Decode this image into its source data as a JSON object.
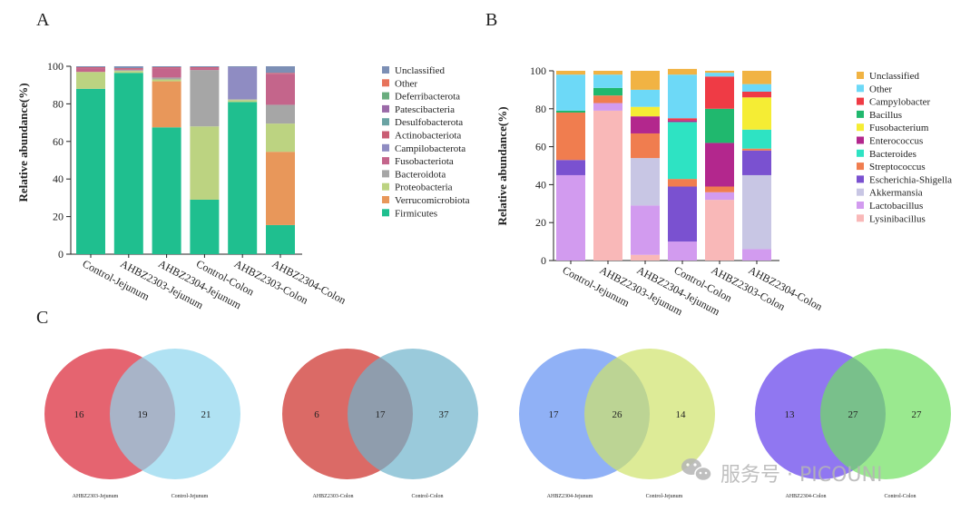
{
  "chart_data": [
    {
      "type": "bar",
      "stacked": true,
      "panel_label": "A",
      "ylabel": "Relative abundance(%)",
      "ylim": [
        0,
        100
      ],
      "yticks": [
        0,
        20,
        40,
        60,
        80,
        100
      ],
      "categories": [
        "Control-Jejunum",
        "AHBZ2303-Jejunum",
        "AHBZ2304-Jejunum",
        "Control-Colon",
        "AHBZ2303-Colon",
        "AHBZ2304-Colon"
      ],
      "series": [
        {
          "name": "Firmicutes",
          "color": "#1fbf8f",
          "values": [
            88,
            96.5,
            67.5,
            29,
            81,
            15.5
          ]
        },
        {
          "name": "Verrucomicrobiota",
          "color": "#e8975a",
          "values": [
            0,
            0,
            24.5,
            0,
            0,
            39
          ]
        },
        {
          "name": "Proteobacteria",
          "color": "#bcd381",
          "values": [
            9,
            1,
            1,
            39,
            1,
            15
          ]
        },
        {
          "name": "Bacteroidota",
          "color": "#a6a6a6",
          "values": [
            0,
            0.5,
            1,
            30,
            0.5,
            10
          ]
        },
        {
          "name": "Fusobacteriota",
          "color": "#c4658b",
          "values": [
            2,
            0.5,
            5,
            1,
            0,
            16.5
          ]
        },
        {
          "name": "Campilobacterota",
          "color": "#8f8cc2",
          "values": [
            0,
            0,
            0,
            0,
            17,
            0
          ]
        },
        {
          "name": "Actinobacteriota",
          "color": "#c95d73",
          "values": [
            0.5,
            0.5,
            0.5,
            0.5,
            0,
            0.5
          ]
        },
        {
          "name": "Desulfobacterota",
          "color": "#6aa3a3",
          "values": [
            0,
            0,
            0,
            0,
            0,
            0
          ]
        },
        {
          "name": "Patescibacteria",
          "color": "#9b6aa8",
          "values": [
            0,
            0,
            0,
            0,
            0,
            0
          ]
        },
        {
          "name": "Deferribacterota",
          "color": "#6aad7e",
          "values": [
            0,
            0,
            0,
            0,
            0,
            0
          ]
        },
        {
          "name": "Other",
          "color": "#e7735b",
          "values": [
            0,
            0,
            0,
            0,
            0,
            0
          ]
        },
        {
          "name": "Unclassified",
          "color": "#7c8fb5",
          "values": [
            0.5,
            1,
            0.5,
            0.5,
            0.5,
            3.5
          ]
        }
      ]
    },
    {
      "type": "bar",
      "stacked": true,
      "panel_label": "B",
      "ylabel": "Relative abundance(%)",
      "ylim": [
        0,
        100
      ],
      "yticks": [
        0,
        20,
        40,
        60,
        80,
        100
      ],
      "categories": [
        "Control-Jejunum",
        "AHBZ2303-Jejunum",
        "AHBZ2304-Jejunum",
        "Control-Colon",
        "AHBZ2303-Colon",
        "AHBZ2304-Colon"
      ],
      "series": [
        {
          "name": "Lysinibacillus",
          "color": "#f9b8b8",
          "values": [
            0,
            79,
            3,
            0,
            32,
            0
          ]
        },
        {
          "name": "Lactobacillus",
          "color": "#d29bef",
          "values": [
            45,
            4,
            26,
            10,
            4,
            6
          ]
        },
        {
          "name": "Akkermansia",
          "color": "#c8c6e4",
          "values": [
            0,
            0,
            25,
            0,
            0,
            39
          ]
        },
        {
          "name": "Escherichia-Shigella",
          "color": "#7a51d0",
          "values": [
            8,
            0,
            0,
            29,
            0,
            13
          ]
        },
        {
          "name": "Streptococcus",
          "color": "#f07d4f",
          "values": [
            25,
            4,
            13,
            4,
            3,
            1
          ]
        },
        {
          "name": "Bacteroides",
          "color": "#2ee3c3",
          "values": [
            0,
            0,
            0,
            30,
            0,
            10
          ]
        },
        {
          "name": "Enterococcus",
          "color": "#b3278d",
          "values": [
            0,
            0,
            9,
            1,
            23,
            0
          ]
        },
        {
          "name": "Fusobacterium",
          "color": "#f5ed34",
          "values": [
            0,
            0,
            5,
            0,
            0,
            17
          ]
        },
        {
          "name": "Bacillus",
          "color": "#20b86e",
          "values": [
            1,
            4,
            0,
            0,
            18,
            0
          ]
        },
        {
          "name": "Campylobacter",
          "color": "#ef3b45",
          "values": [
            0,
            0,
            0,
            1,
            17,
            3
          ]
        },
        {
          "name": "Other",
          "color": "#6dd9f7",
          "values": [
            19,
            7,
            9,
            23,
            2,
            4
          ]
        },
        {
          "name": "Unclassified",
          "color": "#f1b343",
          "values": [
            2,
            2,
            10,
            3,
            1,
            7
          ]
        }
      ]
    }
  ],
  "panel_c_label": "C",
  "venn": [
    {
      "left_label": "AHBZ2303-Jejunum",
      "right_label": "Control-Jejunum",
      "left_only": "16",
      "shared": "19",
      "right_only": "21",
      "left_color": "#e25360",
      "right_color": "#8fd6ee"
    },
    {
      "left_label": "AHBZ2303-Colon",
      "right_label": "Control-Colon",
      "left_only": "6",
      "shared": "17",
      "right_only": "37",
      "left_color": "#d75a55",
      "right_color": "#6fb3cc"
    },
    {
      "left_label": "AHBZ2304-Jejunum",
      "right_label": "Control-Jejunum",
      "left_only": "17",
      "shared": "26",
      "right_only": "14",
      "left_color": "#84a9f5",
      "right_color": "#cfe36b"
    },
    {
      "left_label": "AHBZ2304-Colon",
      "right_label": "Control-Colon",
      "left_only": "13",
      "shared": "27",
      "right_only": "27",
      "left_color": "#8468ef",
      "right_color": "#6fe05f"
    }
  ],
  "watermark": {
    "text": "服务号 · PICOUNI",
    "icon": "wechat-icon"
  }
}
